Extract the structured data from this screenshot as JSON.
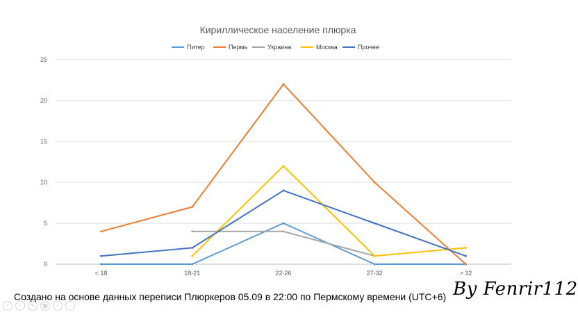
{
  "chart_data": {
    "type": "line",
    "title": "Кириллическое население плюрка",
    "categories": [
      "< 18",
      "18-21",
      "22-26",
      "27-32",
      "> 32"
    ],
    "ylim": [
      0,
      25
    ],
    "yticks": [
      0,
      5,
      10,
      15,
      20,
      25
    ],
    "grid": true,
    "legend_position": "top",
    "series": [
      {
        "name": "Питер",
        "color": "#5b9bd5",
        "values": [
          0,
          0,
          5,
          0,
          0
        ]
      },
      {
        "name": "Пермь",
        "color": "#ed7d31",
        "values": [
          4,
          7,
          22,
          10,
          0
        ]
      },
      {
        "name": "Украина",
        "color": "#a5a5a5",
        "values": [
          null,
          4,
          4,
          1,
          null
        ]
      },
      {
        "name": "Москва",
        "color": "#ffc000",
        "values": [
          null,
          1,
          12,
          1,
          2
        ]
      },
      {
        "name": "Прочее",
        "color": "#4472c4",
        "values": [
          1,
          2,
          9,
          5,
          1
        ]
      }
    ]
  },
  "footer": {
    "note": "Создано на основе данных переписи Плюркеров 05.09 в 22:00 по Пермскому времени (UTC+6)",
    "signature": "By Fenrir112"
  },
  "controls": [
    "arrow-left-icon",
    "arrow-right-icon",
    "pen-icon",
    "slides-icon",
    "zoom-icon",
    "more-icon"
  ]
}
